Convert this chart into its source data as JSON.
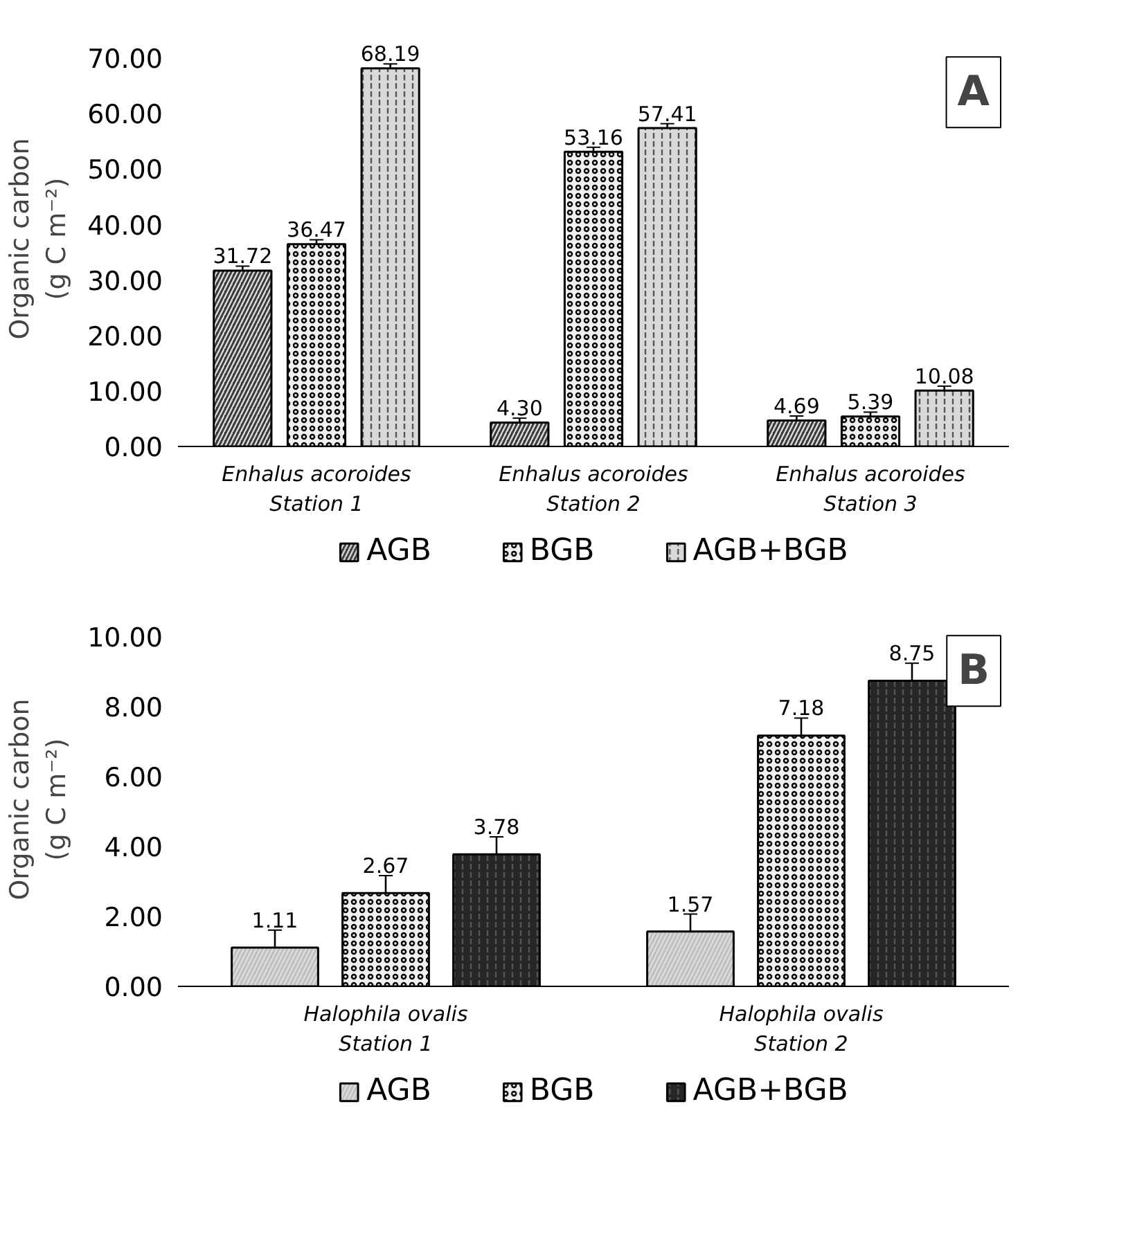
{
  "chart_data": [
    {
      "type": "bar",
      "ylabel": "Organic carbon\n(g C m⁻²)",
      "categories": [
        "Enhalus acoroides\nStation 1",
        "Enhalus acoroides\nStation 2",
        "Enhalus acoroides\nStation 3"
      ],
      "series": [
        {
          "name": "AGB",
          "color": "#3a3a3a",
          "values": [
            31.72,
            4.3,
            4.69
          ],
          "errors": [
            0.8,
            0.8,
            0.8
          ],
          "value_labels": [
            "31.72",
            "4.30",
            "4.69"
          ]
        },
        {
          "name": "BGB",
          "color": "#f0f0f0",
          "values": [
            36.47,
            53.16,
            5.39
          ],
          "errors": [
            0.8,
            0.8,
            0.8
          ],
          "value_labels": [
            "36.47",
            "53.16",
            "5.39"
          ]
        },
        {
          "name": "AGB+BGB",
          "color": "#d9d9d9",
          "values": [
            68.19,
            57.41,
            10.08
          ],
          "errors": [
            0.8,
            0.8,
            0.8
          ],
          "value_labels": [
            "68.19",
            "57.41",
            "10.08"
          ]
        }
      ],
      "ylim": [
        0,
        70
      ],
      "yticks": [
        {
          "value": 0,
          "label": "0.00"
        },
        {
          "value": 10,
          "label": "10.00"
        },
        {
          "value": 20,
          "label": "20.00"
        },
        {
          "value": 30,
          "label": "30.00"
        },
        {
          "value": 40,
          "label": "40.00"
        },
        {
          "value": 50,
          "label": "50.00"
        },
        {
          "value": 60,
          "label": "60.00"
        },
        {
          "value": 70,
          "label": "70.00"
        }
      ],
      "annotations": [
        "A"
      ],
      "legend": "bottom",
      "grid": false,
      "data_labels": true
    },
    {
      "type": "bar",
      "ylabel": "Organic carbon\n(g C m⁻²)",
      "categories": [
        "Halophila ovalis\nStation 1",
        "Halophila ovalis\nStation 2"
      ],
      "series": [
        {
          "name": "AGB",
          "color": "#bfbfbf",
          "values": [
            1.11,
            1.57
          ],
          "errors": [
            0.5,
            0.5
          ],
          "value_labels": [
            "1.11",
            "1.57"
          ]
        },
        {
          "name": "BGB",
          "color": "#f0f0f0",
          "values": [
            2.67,
            7.18
          ],
          "errors": [
            0.5,
            0.5
          ],
          "value_labels": [
            "2.67",
            "7.18"
          ]
        },
        {
          "name": "AGB+BGB",
          "color": "#262626",
          "values": [
            3.78,
            8.75
          ],
          "errors": [
            0.5,
            0.5
          ],
          "value_labels": [
            "3.78",
            "8.75"
          ]
        }
      ],
      "ylim": [
        0,
        10
      ],
      "yticks": [
        {
          "value": 0,
          "label": "0.00"
        },
        {
          "value": 2,
          "label": "2.00"
        },
        {
          "value": 4,
          "label": "4.00"
        },
        {
          "value": 6,
          "label": "6.00"
        },
        {
          "value": 8,
          "label": "8.00"
        },
        {
          "value": 10,
          "label": "10.00"
        }
      ],
      "annotations": [
        "B"
      ],
      "legend": "bottom",
      "grid": false,
      "data_labels": true
    }
  ]
}
